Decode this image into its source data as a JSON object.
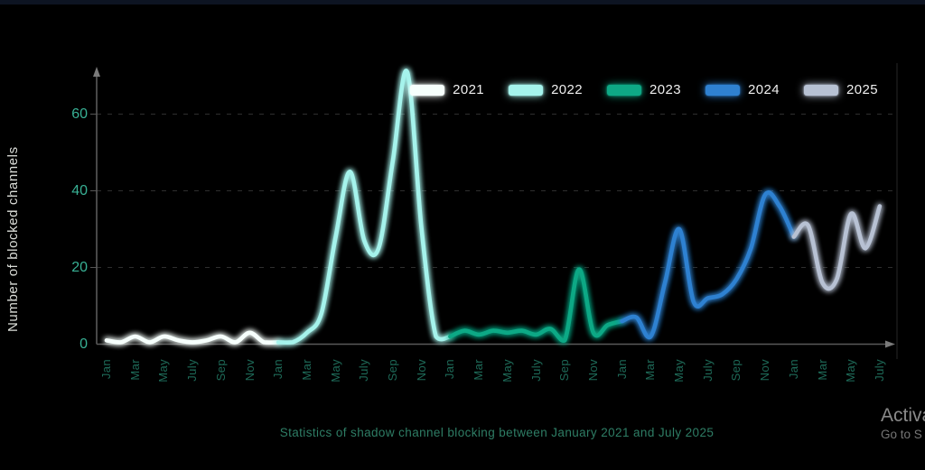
{
  "caption": "Statistics of shadow channel blocking between January 2021 and July 2025",
  "watermark": {
    "line1": "Activa",
    "line2": "Go to S"
  },
  "chart_data": {
    "type": "line",
    "title": "",
    "xlabel": "",
    "ylabel": "Number of blocked channels",
    "x_unit": "month index from January 2021",
    "ylim": [
      0,
      75
    ],
    "y_ticks": [
      0,
      20,
      40,
      60
    ],
    "grid": "dashed horizontal gridlines at 20, 40, 60; solid axis lines with arrowheads",
    "legend_position": "top-right",
    "axis_color": "#5a5a5a",
    "grid_color": "#2e2e2e",
    "x_ticks": [
      {
        "label": "Jan",
        "month": 0
      },
      {
        "label": "Mar",
        "month": 2
      },
      {
        "label": "May",
        "month": 4
      },
      {
        "label": "July",
        "month": 6
      },
      {
        "label": "Sep",
        "month": 8
      },
      {
        "label": "Nov",
        "month": 10
      },
      {
        "label": "Jan",
        "month": 12
      },
      {
        "label": "Mar",
        "month": 14
      },
      {
        "label": "May",
        "month": 16
      },
      {
        "label": "July",
        "month": 18
      },
      {
        "label": "Sep",
        "month": 20
      },
      {
        "label": "Nov",
        "month": 22
      },
      {
        "label": "Jan",
        "month": 24
      },
      {
        "label": "Mar",
        "month": 26
      },
      {
        "label": "May",
        "month": 28
      },
      {
        "label": "July",
        "month": 30
      },
      {
        "label": "Sep",
        "month": 32
      },
      {
        "label": "Nov",
        "month": 34
      },
      {
        "label": "Jan",
        "month": 36
      },
      {
        "label": "Mar",
        "month": 38
      },
      {
        "label": "May",
        "month": 40
      },
      {
        "label": "July",
        "month": 42
      },
      {
        "label": "Sep",
        "month": 44
      },
      {
        "label": "Nov",
        "month": 46
      },
      {
        "label": "Jan",
        "month": 48
      },
      {
        "label": "Mar",
        "month": 50
      },
      {
        "label": "May",
        "month": 52
      },
      {
        "label": "July",
        "month": 54
      }
    ],
    "series": [
      {
        "name": "2021",
        "color": "#f6fffc",
        "start_month": 0,
        "values": [
          1,
          0.5,
          2,
          0.5,
          2,
          1,
          0.5,
          1,
          2,
          0.5,
          3,
          0.5
        ]
      },
      {
        "name": "2022",
        "color": "#a5f3ec",
        "start_month": 12,
        "values": [
          0.5,
          0.5,
          3,
          8,
          28,
          45,
          27,
          25,
          48,
          71,
          30,
          2
        ]
      },
      {
        "name": "2023",
        "color": "#0ea885",
        "start_month": 24,
        "values": [
          2,
          3.5,
          2.5,
          3.5,
          3,
          3.5,
          2.5,
          4,
          1,
          19.5,
          3,
          5
        ]
      },
      {
        "name": "2024",
        "color": "#2f81d1",
        "start_month": 36,
        "values": [
          6,
          7,
          2,
          16,
          30,
          11,
          12,
          13,
          17,
          25,
          39,
          36
        ]
      },
      {
        "name": "2025",
        "color": "#b7c1d3",
        "start_month": 48,
        "values": [
          28,
          31,
          16,
          17,
          34,
          25,
          36
        ]
      }
    ]
  }
}
